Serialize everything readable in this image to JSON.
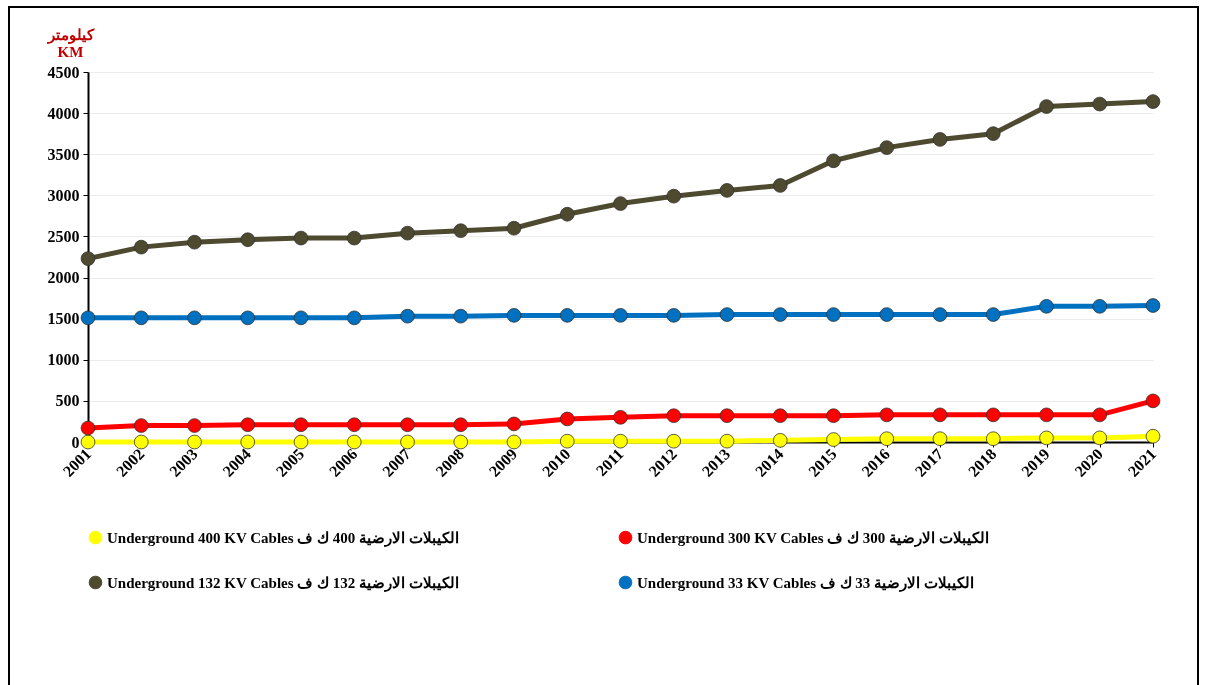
{
  "chart_data": {
    "type": "line",
    "ylabel": "كيلومتر\nKM",
    "categories": [
      "2001",
      "2002",
      "2003",
      "2004",
      "2005",
      "2006",
      "2007",
      "2008",
      "2009",
      "2010",
      "2011",
      "2012",
      "2013",
      "2014",
      "2015",
      "2016",
      "2017",
      "2018",
      "2019",
      "2020",
      "2021"
    ],
    "series": [
      {
        "name": "Underground 400 KV Cables   الكيبلات الارضية 400 ك ف",
        "color": "#ffff00",
        "values": [
          0,
          0,
          0,
          0,
          0,
          0,
          0,
          0,
          0,
          10,
          10,
          10,
          10,
          20,
          30,
          40,
          40,
          40,
          50,
          50,
          70
        ]
      },
      {
        "name": "Underground 300 KV Cables   الكيبلات الارضية 300 ك ف",
        "color": "#ff0000",
        "values": [
          170,
          200,
          200,
          210,
          210,
          210,
          210,
          210,
          220,
          280,
          300,
          320,
          320,
          320,
          320,
          330,
          330,
          330,
          330,
          330,
          500
        ]
      },
      {
        "name": "Underground 132 KV Cables   الكيبلات الارضية 132 ك ف",
        "color": "#4d4a30",
        "values": [
          2230,
          2370,
          2430,
          2460,
          2480,
          2480,
          2540,
          2570,
          2600,
          2770,
          2900,
          2990,
          3060,
          3120,
          3420,
          3580,
          3680,
          3750,
          4080,
          4110,
          4140
        ]
      },
      {
        "name": "Underground 33 KV Cables   الكيبلات الارضية 33 ك ف",
        "color": "#0070c0",
        "values": [
          1510,
          1510,
          1510,
          1510,
          1510,
          1510,
          1530,
          1530,
          1540,
          1540,
          1540,
          1540,
          1550,
          1550,
          1550,
          1550,
          1550,
          1550,
          1650,
          1650,
          1660
        ]
      }
    ],
    "ylim": [
      0,
      4500
    ],
    "yticks": [
      0,
      500,
      1000,
      1500,
      2000,
      2500,
      3000,
      3500,
      4000,
      4500
    ],
    "grid": "y",
    "legend": "bottom",
    "marker": "circle",
    "line_style": "solid"
  }
}
